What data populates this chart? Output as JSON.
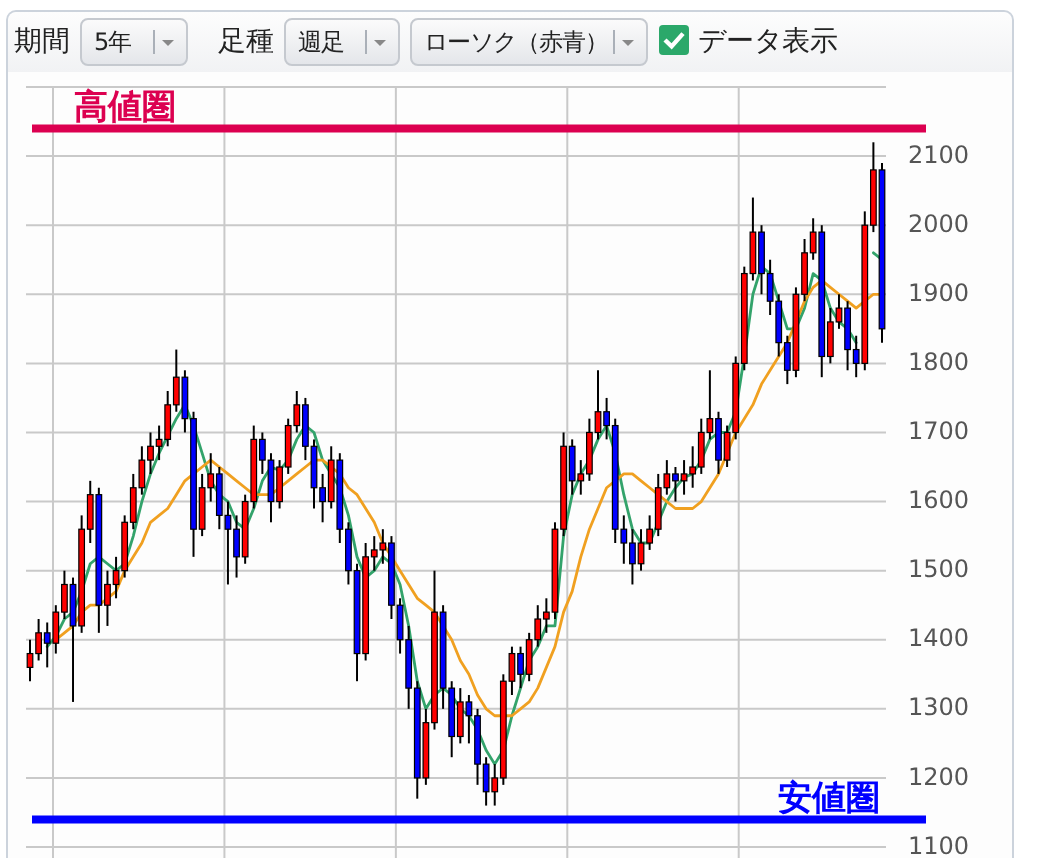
{
  "chart_data": {
    "type": "candlestick",
    "categories": [
      null,
      null,
      null,
      null,
      null,
      null,
      null,
      null,
      null,
      null,
      null,
      null,
      null,
      null,
      null,
      null,
      null,
      null,
      null,
      null,
      null,
      null,
      null,
      null,
      null,
      null,
      null,
      null,
      null,
      null,
      null,
      null,
      null,
      null,
      null,
      null,
      null,
      null,
      null,
      null,
      null,
      null,
      null,
      null,
      null,
      null,
      null,
      null,
      null,
      null,
      null,
      null,
      null,
      null,
      null,
      null,
      null,
      null,
      null,
      null,
      null,
      null,
      null,
      null,
      null,
      null,
      null,
      null,
      null,
      null,
      null,
      null,
      null,
      null,
      null,
      null,
      null,
      null,
      null,
      null,
      null,
      null,
      null,
      null,
      null,
      null,
      null,
      null,
      null,
      null,
      null,
      null,
      null,
      null,
      null,
      null,
      null,
      null,
      null,
      null
    ],
    "ohlc": [
      [
        1360,
        1400,
        1340,
        1380
      ],
      [
        1380,
        1430,
        1370,
        1410
      ],
      [
        1410,
        1425,
        1360,
        1395
      ],
      [
        1395,
        1450,
        1380,
        1440
      ],
      [
        1440,
        1500,
        1430,
        1480
      ],
      [
        1480,
        1490,
        1310,
        1420
      ],
      [
        1420,
        1580,
        1410,
        1560
      ],
      [
        1560,
        1630,
        1540,
        1610
      ],
      [
        1610,
        1620,
        1410,
        1450
      ],
      [
        1450,
        1500,
        1420,
        1480
      ],
      [
        1480,
        1520,
        1460,
        1500
      ],
      [
        1500,
        1580,
        1490,
        1570
      ],
      [
        1570,
        1640,
        1560,
        1620
      ],
      [
        1620,
        1680,
        1610,
        1660
      ],
      [
        1660,
        1700,
        1640,
        1680
      ],
      [
        1680,
        1710,
        1660,
        1690
      ],
      [
        1690,
        1760,
        1680,
        1740
      ],
      [
        1740,
        1820,
        1730,
        1780
      ],
      [
        1780,
        1790,
        1700,
        1720
      ],
      [
        1720,
        1730,
        1520,
        1560
      ],
      [
        1560,
        1640,
        1550,
        1620
      ],
      [
        1620,
        1670,
        1600,
        1640
      ],
      [
        1640,
        1650,
        1560,
        1580
      ],
      [
        1580,
        1600,
        1480,
        1560
      ],
      [
        1560,
        1580,
        1490,
        1520
      ],
      [
        1520,
        1610,
        1510,
        1600
      ],
      [
        1600,
        1710,
        1590,
        1690
      ],
      [
        1690,
        1700,
        1640,
        1660
      ],
      [
        1660,
        1670,
        1570,
        1600
      ],
      [
        1600,
        1660,
        1590,
        1650
      ],
      [
        1650,
        1720,
        1640,
        1710
      ],
      [
        1710,
        1760,
        1700,
        1740
      ],
      [
        1740,
        1750,
        1660,
        1680
      ],
      [
        1680,
        1690,
        1590,
        1620
      ],
      [
        1620,
        1640,
        1570,
        1600
      ],
      [
        1600,
        1680,
        1590,
        1660
      ],
      [
        1660,
        1670,
        1540,
        1560
      ],
      [
        1560,
        1570,
        1480,
        1500
      ],
      [
        1500,
        1510,
        1340,
        1380
      ],
      [
        1380,
        1540,
        1370,
        1520
      ],
      [
        1520,
        1550,
        1500,
        1530
      ],
      [
        1530,
        1560,
        1510,
        1540
      ],
      [
        1540,
        1550,
        1430,
        1450
      ],
      [
        1450,
        1460,
        1380,
        1400
      ],
      [
        1400,
        1420,
        1300,
        1330
      ],
      [
        1330,
        1340,
        1170,
        1200
      ],
      [
        1200,
        1300,
        1190,
        1280
      ],
      [
        1280,
        1500,
        1270,
        1440
      ],
      [
        1440,
        1450,
        1300,
        1330
      ],
      [
        1330,
        1340,
        1230,
        1260
      ],
      [
        1260,
        1330,
        1250,
        1310
      ],
      [
        1310,
        1320,
        1250,
        1290
      ],
      [
        1290,
        1300,
        1190,
        1220
      ],
      [
        1220,
        1230,
        1160,
        1180
      ],
      [
        1180,
        1220,
        1160,
        1200
      ],
      [
        1200,
        1350,
        1190,
        1340
      ],
      [
        1340,
        1390,
        1320,
        1380
      ],
      [
        1380,
        1390,
        1330,
        1350
      ],
      [
        1350,
        1410,
        1340,
        1400
      ],
      [
        1400,
        1450,
        1390,
        1430
      ],
      [
        1430,
        1460,
        1410,
        1440
      ],
      [
        1440,
        1570,
        1430,
        1560
      ],
      [
        1560,
        1700,
        1550,
        1680
      ],
      [
        1680,
        1690,
        1610,
        1630
      ],
      [
        1630,
        1660,
        1610,
        1640
      ],
      [
        1640,
        1720,
        1630,
        1700
      ],
      [
        1700,
        1790,
        1690,
        1730
      ],
      [
        1730,
        1750,
        1690,
        1710
      ],
      [
        1710,
        1720,
        1540,
        1560
      ],
      [
        1560,
        1580,
        1510,
        1540
      ],
      [
        1540,
        1560,
        1480,
        1510
      ],
      [
        1510,
        1560,
        1500,
        1540
      ],
      [
        1540,
        1580,
        1530,
        1560
      ],
      [
        1560,
        1640,
        1550,
        1620
      ],
      [
        1620,
        1660,
        1610,
        1640
      ],
      [
        1640,
        1650,
        1600,
        1630
      ],
      [
        1630,
        1660,
        1610,
        1640
      ],
      [
        1640,
        1680,
        1620,
        1650
      ],
      [
        1650,
        1720,
        1640,
        1700
      ],
      [
        1700,
        1790,
        1690,
        1720
      ],
      [
        1720,
        1730,
        1640,
        1660
      ],
      [
        1660,
        1710,
        1650,
        1700
      ],
      [
        1700,
        1810,
        1690,
        1800
      ],
      [
        1800,
        1940,
        1790,
        1930
      ],
      [
        1930,
        2040,
        1920,
        1990
      ],
      [
        1990,
        2000,
        1900,
        1930
      ],
      [
        1930,
        1950,
        1870,
        1890
      ],
      [
        1890,
        1900,
        1810,
        1830
      ],
      [
        1830,
        1840,
        1770,
        1790
      ],
      [
        1790,
        1910,
        1780,
        1900
      ],
      [
        1900,
        1980,
        1890,
        1960
      ],
      [
        1960,
        2010,
        1950,
        1990
      ],
      [
        1990,
        2000,
        1780,
        1810
      ],
      [
        1810,
        1880,
        1800,
        1860
      ],
      [
        1860,
        1900,
        1850,
        1880
      ],
      [
        1880,
        1890,
        1790,
        1820
      ],
      [
        1820,
        1840,
        1780,
        1800
      ],
      [
        1800,
        2020,
        1790,
        2000
      ],
      [
        2000,
        2120,
        1990,
        2080
      ],
      [
        2080,
        2090,
        1830,
        1850
      ]
    ],
    "colors": [
      "#ff0000",
      "#ff0000",
      "#0000ff",
      "#ff0000",
      "#ff0000",
      "#0000ff",
      "#ff0000",
      "#ff0000",
      "#0000ff",
      "#ff0000",
      "#ff0000",
      "#ff0000",
      "#ff0000",
      "#ff0000",
      "#ff0000",
      "#ff0000",
      "#ff0000",
      "#ff0000",
      "#0000ff",
      "#0000ff",
      "#ff0000",
      "#ff0000",
      "#0000ff",
      "#0000ff",
      "#0000ff",
      "#ff0000",
      "#ff0000",
      "#0000ff",
      "#0000ff",
      "#ff0000",
      "#ff0000",
      "#ff0000",
      "#0000ff",
      "#0000ff",
      "#0000ff",
      "#ff0000",
      "#0000ff",
      "#0000ff",
      "#0000ff",
      "#ff0000",
      "#ff0000",
      "#ff0000",
      "#0000ff",
      "#0000ff",
      "#0000ff",
      "#0000ff",
      "#ff0000",
      "#ff0000",
      "#0000ff",
      "#0000ff",
      "#ff0000",
      "#0000ff",
      "#0000ff",
      "#0000ff",
      "#ff0000",
      "#ff0000",
      "#ff0000",
      "#0000ff",
      "#ff0000",
      "#ff0000",
      "#ff0000",
      "#ff0000",
      "#ff0000",
      "#0000ff",
      "#ff0000",
      "#ff0000",
      "#ff0000",
      "#0000ff",
      "#0000ff",
      "#0000ff",
      "#0000ff",
      "#ff0000",
      "#ff0000",
      "#ff0000",
      "#ff0000",
      "#0000ff",
      "#ff0000",
      "#ff0000",
      "#ff0000",
      "#ff0000",
      "#0000ff",
      "#ff0000",
      "#ff0000",
      "#ff0000",
      "#ff0000",
      "#0000ff",
      "#0000ff",
      "#0000ff",
      "#0000ff",
      "#ff0000",
      "#ff0000",
      "#ff0000",
      "#0000ff",
      "#ff0000",
      "#ff0000",
      "#0000ff",
      "#0000ff",
      "#ff0000",
      "#ff0000",
      "#0000ff"
    ],
    "series": [
      {
        "type": "line",
        "color": "#33a36b",
        "values": [
          null,
          null,
          1390,
          1405,
          1430,
          1440,
          1470,
          1510,
          1520,
          1510,
          1500,
          1510,
          1550,
          1600,
          1640,
          1670,
          1695,
          1720,
          1740,
          1710,
          1670,
          1630,
          1610,
          1600,
          1570,
          1560,
          1590,
          1630,
          1650,
          1645,
          1660,
          1690,
          1710,
          1700,
          1660,
          1640,
          1620,
          1580,
          1520,
          1490,
          1500,
          1520,
          1510,
          1480,
          1420,
          1340,
          1300,
          1320,
          1330,
          1320,
          1300,
          1290,
          1270,
          1240,
          1220,
          1240,
          1290,
          1330,
          1370,
          1390,
          1420,
          1420,
          1550,
          1610,
          1640,
          1660,
          1690,
          1710,
          1670,
          1610,
          1560,
          1540,
          1540,
          1570,
          1600,
          1620,
          1635,
          1640,
          1660,
          1690,
          1700,
          1700,
          1730,
          1810,
          1900,
          1940,
          1930,
          1890,
          1850,
          1850,
          1880,
          1930,
          1920,
          1880,
          1860,
          1850,
          1830,
          null,
          1960,
          1950
        ]
      },
      {
        "type": "line",
        "color": "#f0a020",
        "values": [
          null,
          null,
          null,
          1400,
          1410,
          1420,
          1440,
          1450,
          1450,
          1460,
          1470,
          1500,
          1520,
          1540,
          1570,
          1580,
          1590,
          1610,
          1630,
          1640,
          1650,
          1660,
          1650,
          1640,
          1630,
          1620,
          1610,
          1610,
          1610,
          1620,
          1630,
          1640,
          1650,
          1660,
          1660,
          1650,
          1640,
          1620,
          1610,
          1590,
          1570,
          1540,
          1520,
          1500,
          1480,
          1460,
          1450,
          1440,
          1420,
          1400,
          1370,
          1350,
          1320,
          1300,
          1290,
          1290,
          1290,
          1300,
          1310,
          1330,
          1360,
          1390,
          1440,
          1470,
          1520,
          1560,
          1590,
          1620,
          1630,
          1640,
          1640,
          1630,
          1620,
          1610,
          1600,
          1590,
          1590,
          1590,
          1600,
          1620,
          1640,
          1670,
          1700,
          1720,
          1740,
          1770,
          1790,
          1810,
          1830,
          1860,
          1890,
          1910,
          1920,
          1910,
          1900,
          1890,
          1880,
          1890,
          1900,
          1900
        ]
      }
    ],
    "ylim": [
      1085,
      2200
    ],
    "yticks": [
      1100,
      1200,
      1300,
      1400,
      1500,
      1600,
      1700,
      1800,
      1900,
      2000,
      2100,
      {
        "value": 2200,
        "label": null
      }
    ],
    "tick_labels": "y",
    "grid": "y",
    "ref_lines": [
      {
        "axis": "y",
        "value": 2140,
        "label": "高値圏",
        "color": "#dc0050"
      },
      {
        "axis": "y",
        "value": 1140,
        "label": "安値圏",
        "color": "#0000ff"
      }
    ],
    "annotations": [
      "期間",
      "5年",
      "足種",
      "週足",
      "ローソク（赤青）",
      "データ表示"
    ]
  }
}
